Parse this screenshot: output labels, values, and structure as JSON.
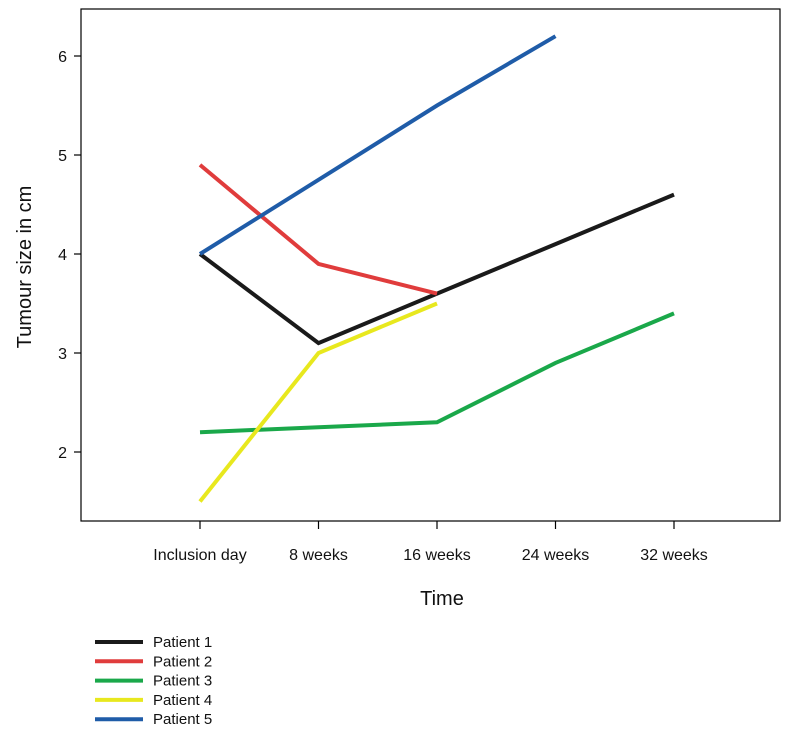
{
  "chart_data": {
    "type": "line",
    "title": "",
    "xlabel": "Time",
    "ylabel": "Tumour size in cm",
    "categories": [
      "Inclusion day",
      "8 weeks",
      "16 weeks",
      "24 weeks",
      "32 weeks"
    ],
    "yticks": [
      2,
      3,
      4,
      5,
      6
    ],
    "ylim": [
      1.3,
      6.45
    ],
    "grid": false,
    "legend_position": "bottom-left",
    "series": [
      {
        "name": "Patient 1",
        "color": "#1a1a1a",
        "values": [
          4.0,
          3.1,
          3.6,
          4.1,
          4.6
        ]
      },
      {
        "name": "Patient 2",
        "color": "#e03c3c",
        "values": [
          4.9,
          3.9,
          3.6,
          null,
          null
        ]
      },
      {
        "name": "Patient 3",
        "color": "#1aa84a",
        "values": [
          2.2,
          2.25,
          2.3,
          2.9,
          3.4
        ]
      },
      {
        "name": "Patient 4",
        "color": "#e8e81e",
        "values": [
          1.5,
          3.0,
          3.5,
          null,
          null
        ]
      },
      {
        "name": "Patient 5",
        "color": "#1f5ca8",
        "values": [
          4.0,
          4.75,
          5.5,
          6.2,
          null
        ]
      }
    ]
  }
}
